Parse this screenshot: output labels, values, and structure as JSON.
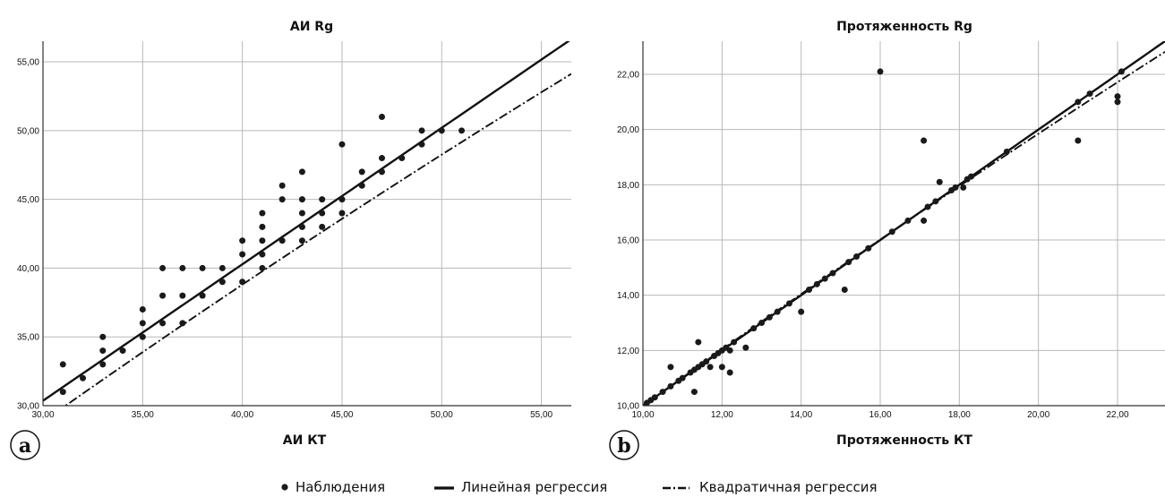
{
  "legend": {
    "observations": "Наблюдения",
    "linear": "Линейная регрессия",
    "quadratic": "Квадратичная регрессия"
  },
  "chart_data": [
    {
      "type": "scatter",
      "panel_label": "a",
      "title": "АИ Rg",
      "xlabel": "АИ КТ",
      "ylabel": "",
      "xlim": [
        30,
        56.5
      ],
      "ylim": [
        30,
        56.5
      ],
      "xticks": [
        30,
        35,
        40,
        45,
        50,
        55
      ],
      "yticks": [
        30,
        35,
        40,
        45,
        50,
        55
      ],
      "xtick_labels": [
        "30,00",
        "35,00",
        "40,00",
        "45,00",
        "50,00",
        "55,00"
      ],
      "ytick_labels": [
        "30,00",
        "35,00",
        "40,00",
        "45,00",
        "50,00",
        "55,00"
      ],
      "grid": true,
      "series": [
        {
          "name": "Наблюдения",
          "kind": "points",
          "points": [
            [
              31,
              33
            ],
            [
              31,
              31
            ],
            [
              32,
              32
            ],
            [
              33,
              35
            ],
            [
              33,
              34
            ],
            [
              33,
              33
            ],
            [
              34,
              34
            ],
            [
              35,
              37
            ],
            [
              35,
              36
            ],
            [
              35,
              35
            ],
            [
              36,
              40
            ],
            [
              36,
              38
            ],
            [
              36,
              36
            ],
            [
              37,
              40
            ],
            [
              37,
              38
            ],
            [
              37,
              36
            ],
            [
              38,
              40
            ],
            [
              38,
              38
            ],
            [
              39,
              40
            ],
            [
              39,
              39
            ],
            [
              40,
              42
            ],
            [
              40,
              41
            ],
            [
              40,
              39
            ],
            [
              41,
              44
            ],
            [
              41,
              43
            ],
            [
              41,
              42
            ],
            [
              41,
              41
            ],
            [
              41,
              40
            ],
            [
              42,
              46
            ],
            [
              42,
              45
            ],
            [
              42,
              42
            ],
            [
              43,
              47
            ],
            [
              43,
              45
            ],
            [
              43,
              44
            ],
            [
              43,
              43
            ],
            [
              43,
              42
            ],
            [
              44,
              45
            ],
            [
              44,
              44
            ],
            [
              44,
              43
            ],
            [
              45,
              49
            ],
            [
              45,
              45
            ],
            [
              45,
              44
            ],
            [
              46,
              47
            ],
            [
              46,
              46
            ],
            [
              47,
              51
            ],
            [
              47,
              48
            ],
            [
              47,
              47
            ],
            [
              48,
              48
            ],
            [
              49,
              50
            ],
            [
              49,
              49
            ],
            [
              50,
              50
            ],
            [
              51,
              50
            ]
          ]
        },
        {
          "name": "Линейная регрессия",
          "kind": "line",
          "coef": [
            0.6,
            0.992
          ]
        },
        {
          "name": "Квадратичная регрессия",
          "kind": "dashdot",
          "coef": [
            -4.0,
            1.17,
            -0.0025
          ]
        }
      ]
    },
    {
      "type": "scatter",
      "panel_label": "b",
      "title": "Протяженность Rg",
      "xlabel": "Протяженность КТ",
      "ylabel": "",
      "xlim": [
        10,
        23.2
      ],
      "ylim": [
        10,
        23.2
      ],
      "xticks": [
        10,
        12,
        14,
        16,
        18,
        20,
        22
      ],
      "yticks": [
        10,
        12,
        14,
        16,
        18,
        20,
        22
      ],
      "xtick_labels": [
        "10,00",
        "12,00",
        "14,00",
        "16,00",
        "18,00",
        "20,00",
        "22,00"
      ],
      "ytick_labels": [
        "10,00",
        "12,00",
        "14,00",
        "16,00",
        "18,00",
        "20,00",
        "22,00"
      ],
      "grid": true,
      "series": [
        {
          "name": "Наблюдения",
          "kind": "points",
          "points": [
            [
              10.1,
              10.1
            ],
            [
              10.2,
              10.2
            ],
            [
              10.3,
              10.3
            ],
            [
              10.5,
              10.5
            ],
            [
              10.7,
              10.7
            ],
            [
              10.7,
              11.4
            ],
            [
              10.9,
              10.9
            ],
            [
              11.0,
              11.0
            ],
            [
              11.2,
              11.2
            ],
            [
              11.3,
              10.5
            ],
            [
              11.3,
              11.3
            ],
            [
              11.4,
              11.4
            ],
            [
              11.4,
              12.3
            ],
            [
              11.5,
              11.5
            ],
            [
              11.6,
              11.6
            ],
            [
              11.7,
              11.4
            ],
            [
              11.8,
              11.8
            ],
            [
              11.9,
              11.9
            ],
            [
              12.0,
              12.0
            ],
            [
              12.0,
              11.4
            ],
            [
              12.1,
              12.1
            ],
            [
              12.2,
              11.2
            ],
            [
              12.2,
              12.0
            ],
            [
              12.3,
              12.3
            ],
            [
              12.6,
              12.1
            ],
            [
              12.8,
              12.8
            ],
            [
              13.0,
              13.0
            ],
            [
              13.2,
              13.2
            ],
            [
              13.4,
              13.4
            ],
            [
              13.7,
              13.7
            ],
            [
              14.0,
              13.4
            ],
            [
              14.2,
              14.2
            ],
            [
              14.4,
              14.4
            ],
            [
              14.6,
              14.6
            ],
            [
              14.8,
              14.8
            ],
            [
              15.1,
              14.2
            ],
            [
              15.2,
              15.2
            ],
            [
              15.4,
              15.4
            ],
            [
              15.7,
              15.7
            ],
            [
              16.0,
              22.1
            ],
            [
              16.3,
              16.3
            ],
            [
              16.7,
              16.7
            ],
            [
              17.1,
              16.7
            ],
            [
              17.1,
              19.6
            ],
            [
              17.2,
              17.2
            ],
            [
              17.4,
              17.4
            ],
            [
              17.5,
              18.1
            ],
            [
              17.8,
              17.8
            ],
            [
              17.9,
              17.9
            ],
            [
              18.1,
              17.9
            ],
            [
              18.2,
              18.2
            ],
            [
              18.3,
              18.3
            ],
            [
              19.2,
              19.2
            ],
            [
              21.0,
              21.0
            ],
            [
              21.0,
              19.6
            ],
            [
              21.3,
              21.3
            ],
            [
              22.0,
              21.2
            ],
            [
              22.0,
              21.0
            ],
            [
              22.1,
              22.1
            ]
          ]
        },
        {
          "name": "Линейная регрессия",
          "kind": "line",
          "coef": [
            0.0,
            1.0
          ]
        },
        {
          "name": "Квадратичная регрессия",
          "kind": "dashdot",
          "coef": [
            -0.77,
            1.121,
            -0.0045
          ]
        }
      ]
    }
  ]
}
